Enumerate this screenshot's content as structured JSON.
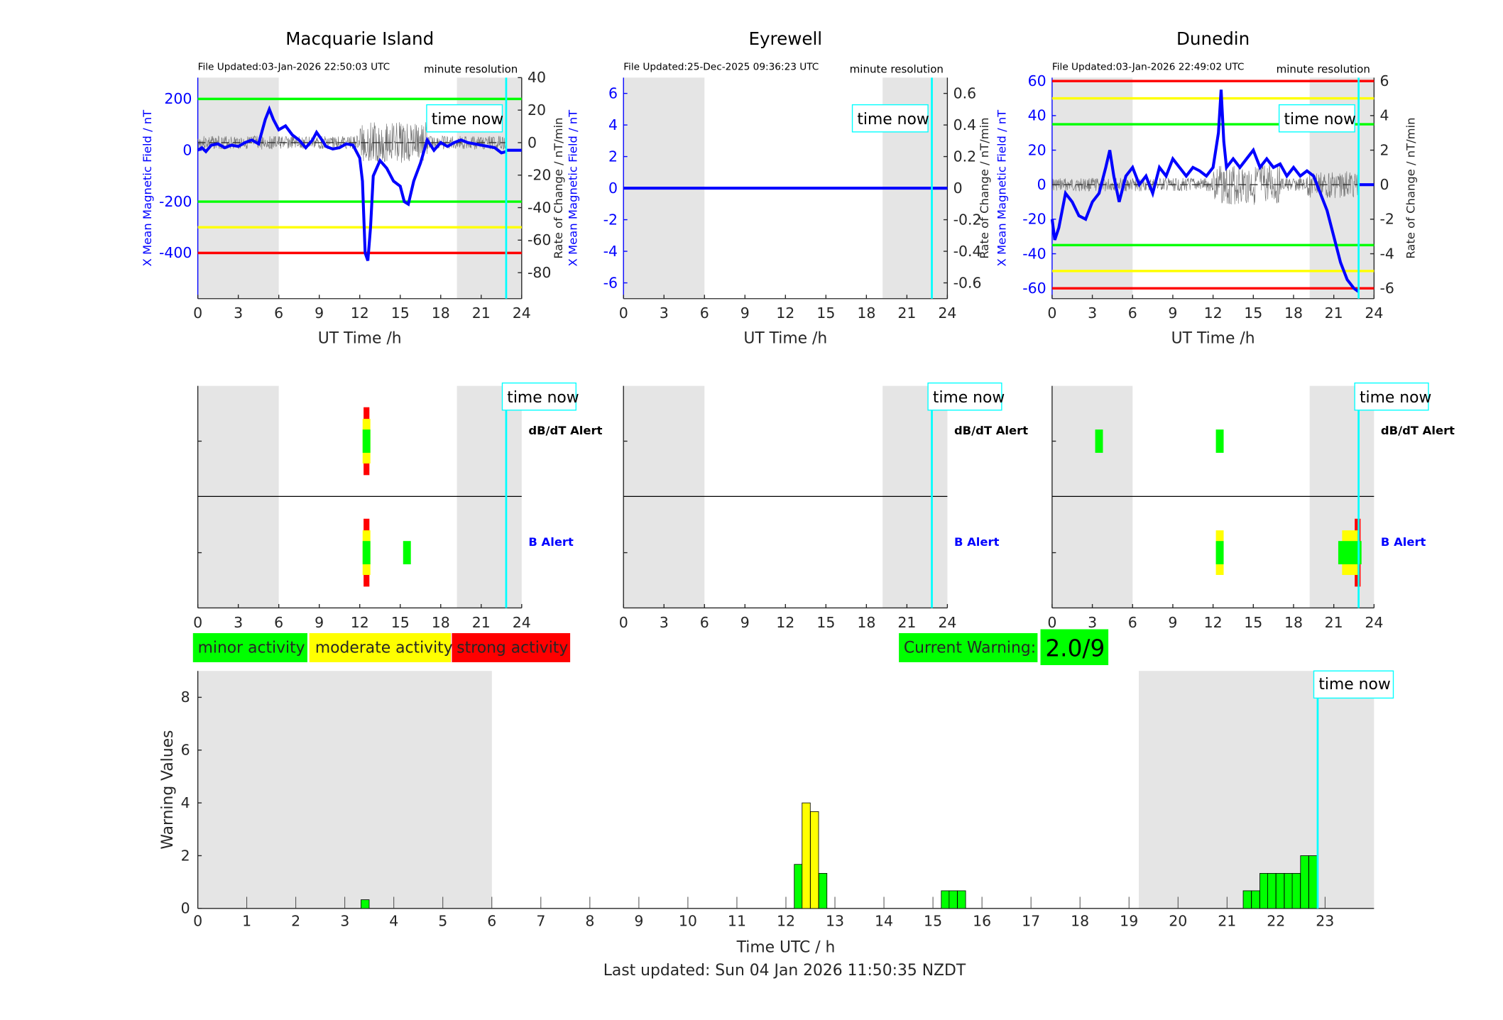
{
  "chart_data": [
    {
      "type": "line",
      "title": "Macquarie Island",
      "file_updated": "File Updated:03-Jan-2026 22:50:03 UTC",
      "resolution": "minute resolution",
      "xlabel": "UT Time /h",
      "ylabel": "X Mean Magnetic Field / nT",
      "y2label": "Rate of Change / nT/min",
      "xlim": [
        0,
        24
      ],
      "ylim": [
        -578,
        283
      ],
      "y2lim": [
        -96,
        40
      ],
      "xticks": [
        0,
        3,
        6,
        9,
        12,
        15,
        18,
        21,
        24
      ],
      "yticks": [
        200,
        0,
        -200,
        -400
      ],
      "y2ticks": [
        40,
        20,
        0,
        -20,
        -40,
        -60,
        -80
      ],
      "thresholds": [
        {
          "value": 200,
          "color": "#00ff00"
        },
        {
          "value": -200,
          "color": "#00ff00"
        },
        {
          "value": -300,
          "color": "#ffff00"
        },
        {
          "value": -400,
          "color": "#ff0000"
        }
      ],
      "series": [
        {
          "name": "X field",
          "x": [
            0,
            0.3,
            0.6,
            1,
            1.5,
            2,
            2.5,
            3,
            3.5,
            4,
            4.5,
            5,
            5.3,
            5.6,
            6,
            6.5,
            7,
            7.5,
            8,
            8.5,
            8.8,
            9.2,
            9.5,
            10,
            10.5,
            11,
            11.5,
            12,
            12.2,
            12.4,
            12.6,
            12.8,
            13,
            13.5,
            14,
            14.5,
            15,
            15.3,
            15.6,
            16,
            16.5,
            17,
            17.5,
            18,
            18.5,
            19,
            19.5,
            20,
            20.5,
            21,
            21.5,
            22,
            22.5,
            22.85
          ],
          "y": [
            0,
            10,
            -5,
            20,
            25,
            10,
            20,
            15,
            30,
            40,
            25,
            120,
            160,
            120,
            80,
            95,
            60,
            40,
            10,
            40,
            70,
            40,
            15,
            5,
            10,
            25,
            20,
            -30,
            -120,
            -400,
            -430,
            -300,
            -100,
            -40,
            -70,
            -120,
            -140,
            -200,
            -210,
            -120,
            -50,
            40,
            0,
            30,
            15,
            30,
            40,
            30,
            25,
            20,
            15,
            10,
            -10,
            -5
          ]
        }
      ]
    },
    {
      "type": "line",
      "title": "Eyrewell",
      "file_updated": "File Updated:25-Dec-2025 09:36:23 UTC",
      "resolution": "minute resolution",
      "xlabel": "UT Time /h",
      "ylabel": "X Mean Magnetic Field / nT",
      "y2label": "Rate of Change / nT/min",
      "xlim": [
        0,
        24
      ],
      "ylim": [
        -7,
        7
      ],
      "y2lim": [
        -0.7,
        0.7
      ],
      "xticks": [
        0,
        3,
        6,
        9,
        12,
        15,
        18,
        21,
        24
      ],
      "yticks": [
        6,
        4,
        2,
        0,
        -2,
        -4,
        -6
      ],
      "y2ticks": [
        0.6,
        0.4,
        0.2,
        0,
        -0.2,
        -0.4,
        -0.6
      ],
      "thresholds": [],
      "series": [
        {
          "name": "X field",
          "x": [
            0,
            24
          ],
          "y": [
            0,
            0
          ]
        }
      ]
    },
    {
      "type": "line",
      "title": "Dunedin",
      "file_updated": "File Updated:03-Jan-2026 22:49:02 UTC",
      "resolution": "minute resolution",
      "xlabel": "UT Time /h",
      "ylabel": "X Mean Magnetic Field / nT",
      "y2label": "Rate of Change / nT/min",
      "xlim": [
        0,
        24
      ],
      "ylim": [
        -66,
        62
      ],
      "y2lim": [
        -6.6,
        6.2
      ],
      "xticks": [
        0,
        3,
        6,
        9,
        12,
        15,
        18,
        21,
        24
      ],
      "yticks": [
        60,
        40,
        20,
        0,
        -20,
        -40,
        -60
      ],
      "y2ticks": [
        6,
        4,
        2,
        0,
        -2,
        -4,
        -6
      ],
      "thresholds": [
        {
          "value": 60,
          "color": "#ff0000"
        },
        {
          "value": -60,
          "color": "#ff0000"
        },
        {
          "value": 50,
          "color": "#ffff00"
        },
        {
          "value": -50,
          "color": "#ffff00"
        },
        {
          "value": 35,
          "color": "#00ff00"
        },
        {
          "value": -35,
          "color": "#00ff00"
        }
      ],
      "series": [
        {
          "name": "X field",
          "x": [
            0,
            0.2,
            0.5,
            1,
            1.5,
            2,
            2.5,
            3,
            3.5,
            4,
            4.3,
            4.6,
            5,
            5.5,
            6,
            6.5,
            7,
            7.5,
            8,
            8.5,
            9,
            9.5,
            10,
            10.5,
            11,
            11.5,
            12,
            12.4,
            12.6,
            12.8,
            13,
            13.5,
            14,
            14.5,
            15,
            15.5,
            16,
            16.5,
            17,
            17.5,
            18,
            18.5,
            19,
            19.5,
            20,
            20.5,
            21,
            21.5,
            22,
            22.5,
            22.85
          ],
          "y": [
            -20,
            -32,
            -25,
            -5,
            -10,
            -18,
            -20,
            -10,
            -5,
            10,
            20,
            5,
            -10,
            5,
            10,
            0,
            5,
            -5,
            10,
            5,
            15,
            10,
            5,
            10,
            8,
            5,
            10,
            30,
            55,
            25,
            10,
            15,
            10,
            15,
            20,
            10,
            15,
            10,
            12,
            5,
            10,
            5,
            8,
            5,
            -5,
            -15,
            -30,
            -45,
            -55,
            -60,
            -62
          ]
        }
      ]
    },
    {
      "type": "bar",
      "xlabel": "Time UTC / h",
      "ylabel": "Warning Values",
      "xlim": [
        0,
        24
      ],
      "ylim": [
        0,
        9
      ],
      "xticks": [
        0,
        1,
        2,
        3,
        4,
        5,
        6,
        7,
        8,
        9,
        10,
        11,
        12,
        13,
        14,
        15,
        16,
        17,
        18,
        19,
        20,
        21,
        22,
        23
      ],
      "yticks": [
        0,
        2,
        4,
        6,
        8
      ],
      "bar_width_h": 0.1667,
      "bars": [
        {
          "x": 3.33,
          "v": 0.33,
          "level": "minor"
        },
        {
          "x": 12.17,
          "v": 1.67,
          "level": "minor"
        },
        {
          "x": 12.33,
          "v": 4,
          "level": "moderate"
        },
        {
          "x": 12.5,
          "v": 3.67,
          "level": "moderate"
        },
        {
          "x": 12.67,
          "v": 1.33,
          "level": "minor"
        },
        {
          "x": 15.17,
          "v": 0.67,
          "level": "minor"
        },
        {
          "x": 15.33,
          "v": 0.67,
          "level": "minor"
        },
        {
          "x": 15.5,
          "v": 0.67,
          "level": "minor"
        },
        {
          "x": 21.33,
          "v": 0.67,
          "level": "minor"
        },
        {
          "x": 21.5,
          "v": 0.67,
          "level": "minor"
        },
        {
          "x": 21.67,
          "v": 1.33,
          "level": "minor"
        },
        {
          "x": 21.83,
          "v": 1.33,
          "level": "minor"
        },
        {
          "x": 22,
          "v": 1.33,
          "level": "minor"
        },
        {
          "x": 22.17,
          "v": 1.33,
          "level": "minor"
        },
        {
          "x": 22.33,
          "v": 1.33,
          "level": "minor"
        },
        {
          "x": 22.5,
          "v": 2,
          "level": "minor"
        },
        {
          "x": 22.67,
          "v": 2,
          "level": "minor"
        }
      ]
    }
  ],
  "night_shading_h": [
    [
      0,
      6
    ],
    [
      19.2,
      24
    ]
  ],
  "time_now_h": 22.85,
  "time_now_label": "time now",
  "alerts": {
    "dbdt_label": "dB/dT Alert",
    "b_label": "B Alert",
    "marks": [
      {
        "station": 0,
        "type": "dbdt",
        "x": 12.5,
        "levels": [
          "strong",
          "moderate",
          "minor"
        ]
      },
      {
        "station": 0,
        "type": "b",
        "x": 12.5,
        "levels": [
          "strong",
          "moderate",
          "minor"
        ]
      },
      {
        "station": 0,
        "type": "b",
        "x": 15.5,
        "levels": [
          "minor"
        ]
      },
      {
        "station": 2,
        "type": "dbdt",
        "x": 3.5,
        "levels": [
          "minor"
        ]
      },
      {
        "station": 2,
        "type": "dbdt",
        "x": 12.5,
        "levels": [
          "minor"
        ]
      },
      {
        "station": 2,
        "type": "b",
        "x": 12.5,
        "levels": [
          "moderate",
          "minor"
        ]
      },
      {
        "station": 2,
        "type": "b",
        "x": 22.2,
        "levels": [
          "strong",
          "moderate",
          "minor"
        ]
      }
    ]
  },
  "legend": {
    "minor": "minor activity",
    "moderate": "moderate activity",
    "strong": "strong activity"
  },
  "colors": {
    "minor": "#00ff00",
    "moderate": "#ffff00",
    "strong": "#ff0000",
    "field": "#0000ff",
    "now": "#00ffff",
    "shade": "#e5e5e5"
  },
  "current_warning": {
    "label": "Current Warning:",
    "value": "2.0/9"
  },
  "last_updated": "Last updated: Sun 04 Jan 2026 11:50:35 NZDT"
}
